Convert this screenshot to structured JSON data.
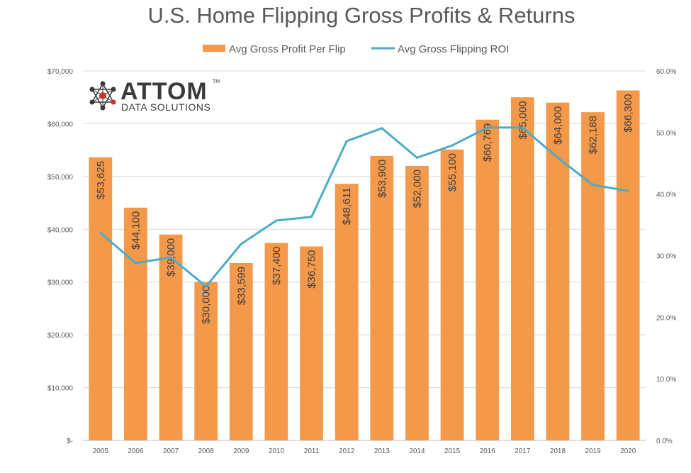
{
  "chart_data": {
    "type": "bar",
    "title": "U.S. Home Flipping Gross Profits & Returns",
    "categories": [
      "2005",
      "2006",
      "2007",
      "2008",
      "2009",
      "2010",
      "2011",
      "2012",
      "2013",
      "2014",
      "2015",
      "2016",
      "2017",
      "2018",
      "2019",
      "2020"
    ],
    "series": [
      {
        "name": "Avg Gross Profit Per Flip",
        "type": "bar",
        "axis": "left",
        "values": [
          53625,
          44100,
          39000,
          30000,
          33599,
          37400,
          36750,
          48611,
          53900,
          52000,
          55100,
          60769,
          65000,
          64000,
          62188,
          66300
        ],
        "labels": [
          "$53,625",
          "$44,100",
          "$39,000",
          "$30,000",
          "$33,599",
          "$37,400",
          "$36,750",
          "$48,611",
          "$53,900",
          "$52,000",
          "$55,100",
          "$60,769",
          "$65,000",
          "$64,000",
          "$62,188",
          "$66,300"
        ]
      },
      {
        "name": "Avg Gross Flipping ROI",
        "type": "line",
        "axis": "right",
        "values": [
          33.7,
          28.8,
          29.7,
          25.0,
          31.9,
          35.7,
          36.3,
          48.6,
          50.7,
          45.9,
          47.9,
          50.8,
          50.8,
          45.9,
          41.5,
          40.5
        ]
      }
    ],
    "ylim": [
      0,
      70000
    ],
    "yticks": [
      0,
      10000,
      20000,
      30000,
      40000,
      50000,
      60000,
      70000
    ],
    "ytick_labels": [
      "$-",
      "$10,000",
      "$20,000",
      "$30,000",
      "$40,000",
      "$50,000",
      "$60,000",
      "$70,000"
    ],
    "y2lim": [
      0,
      60
    ],
    "y2ticks": [
      0,
      10,
      20,
      30,
      40,
      50,
      60
    ],
    "y2tick_labels": [
      "0.0%",
      "10.0%",
      "20.0%",
      "30.0%",
      "40.0%",
      "50.0%",
      "60.0%"
    ],
    "grid": true,
    "legend_position": "top-center",
    "colors": {
      "bar": "#F4984A",
      "line": "#4BACC6",
      "grid": "#d9d9d9"
    }
  },
  "logo": {
    "name": "ATTOM",
    "sub": "DATA SOLUTIONS",
    "tm": "TM",
    "icon": "molecule-network-icon"
  }
}
